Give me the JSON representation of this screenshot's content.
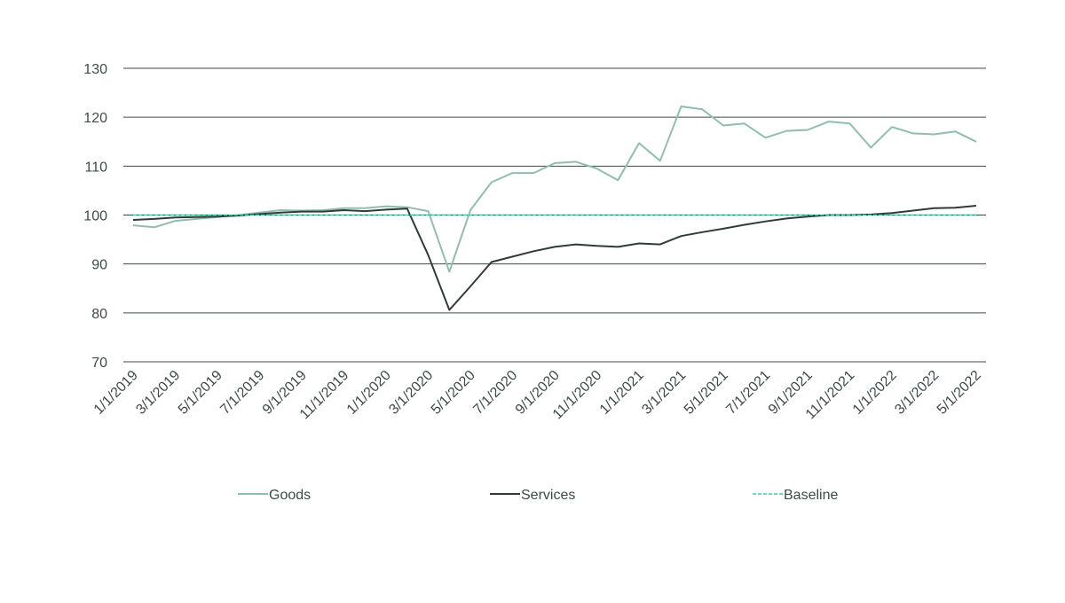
{
  "chart_data": {
    "type": "line",
    "title": "",
    "xlabel": "",
    "ylabel": "",
    "ylim": [
      70,
      130
    ],
    "yticks": [
      70,
      80,
      90,
      100,
      110,
      120,
      130
    ],
    "grid": true,
    "legend_position": "bottom",
    "tick_labels": [
      "1/1/2019",
      "3/1/2019",
      "5/1/2019",
      "7/1/2019",
      "9/1/2019",
      "11/1/2019",
      "1/1/2020",
      "3/1/2020",
      "5/1/2020",
      "7/1/2020",
      "9/1/2020",
      "11/1/2020",
      "1/1/2021",
      "3/1/2021",
      "5/1/2021",
      "7/1/2021",
      "9/1/2021",
      "11/1/2021",
      "1/1/2022",
      "3/1/2022",
      "5/1/2022"
    ],
    "x": [
      "2019-01",
      "2019-02",
      "2019-03",
      "2019-04",
      "2019-05",
      "2019-06",
      "2019-07",
      "2019-08",
      "2019-09",
      "2019-10",
      "2019-11",
      "2019-12",
      "2020-01",
      "2020-02",
      "2020-03",
      "2020-04",
      "2020-05",
      "2020-06",
      "2020-07",
      "2020-08",
      "2020-09",
      "2020-10",
      "2020-11",
      "2020-12",
      "2021-01",
      "2021-02",
      "2021-03",
      "2021-04",
      "2021-05",
      "2021-06",
      "2021-07",
      "2021-08",
      "2021-09",
      "2021-10",
      "2021-11",
      "2021-12",
      "2022-01",
      "2022-02",
      "2022-03",
      "2022-04",
      "2022-05"
    ],
    "series": [
      {
        "name": "Goods",
        "color": "#8fbfab",
        "dash": false,
        "values": [
          97.9,
          97.5,
          98.8,
          99.2,
          99.6,
          100.0,
          100.5,
          101.0,
          100.9,
          101.0,
          101.4,
          101.4,
          101.8,
          101.6,
          100.8,
          88.4,
          101.0,
          106.7,
          108.6,
          108.6,
          110.6,
          110.9,
          109.5,
          107.1,
          114.7,
          111.1,
          122.2,
          121.6,
          118.3,
          118.7,
          115.8,
          117.2,
          117.4,
          119.1,
          118.7,
          113.8,
          118.0,
          116.7,
          116.5,
          117.1,
          115.0
        ]
      },
      {
        "name": "Services",
        "color": "#2f3a3a",
        "dash": false,
        "values": [
          99.0,
          99.2,
          99.5,
          99.6,
          99.7,
          99.9,
          100.2,
          100.5,
          100.7,
          100.7,
          101.0,
          100.8,
          101.1,
          101.3,
          91.8,
          80.6,
          85.4,
          90.4,
          91.5,
          92.6,
          93.5,
          94.0,
          93.7,
          93.5,
          94.2,
          94.0,
          95.7,
          96.5,
          97.2,
          98.0,
          98.7,
          99.3,
          99.7,
          100.0,
          100.0,
          100.1,
          100.4,
          100.9,
          101.4,
          101.5,
          101.9
        ]
      },
      {
        "name": "Baseline",
        "color": "#3cc9a8",
        "dash": true,
        "values": [
          100,
          100,
          100,
          100,
          100,
          100,
          100,
          100,
          100,
          100,
          100,
          100,
          100,
          100,
          100,
          100,
          100,
          100,
          100,
          100,
          100,
          100,
          100,
          100,
          100,
          100,
          100,
          100,
          100,
          100,
          100,
          100,
          100,
          100,
          100,
          100,
          100,
          100,
          100,
          100,
          100
        ]
      }
    ]
  }
}
